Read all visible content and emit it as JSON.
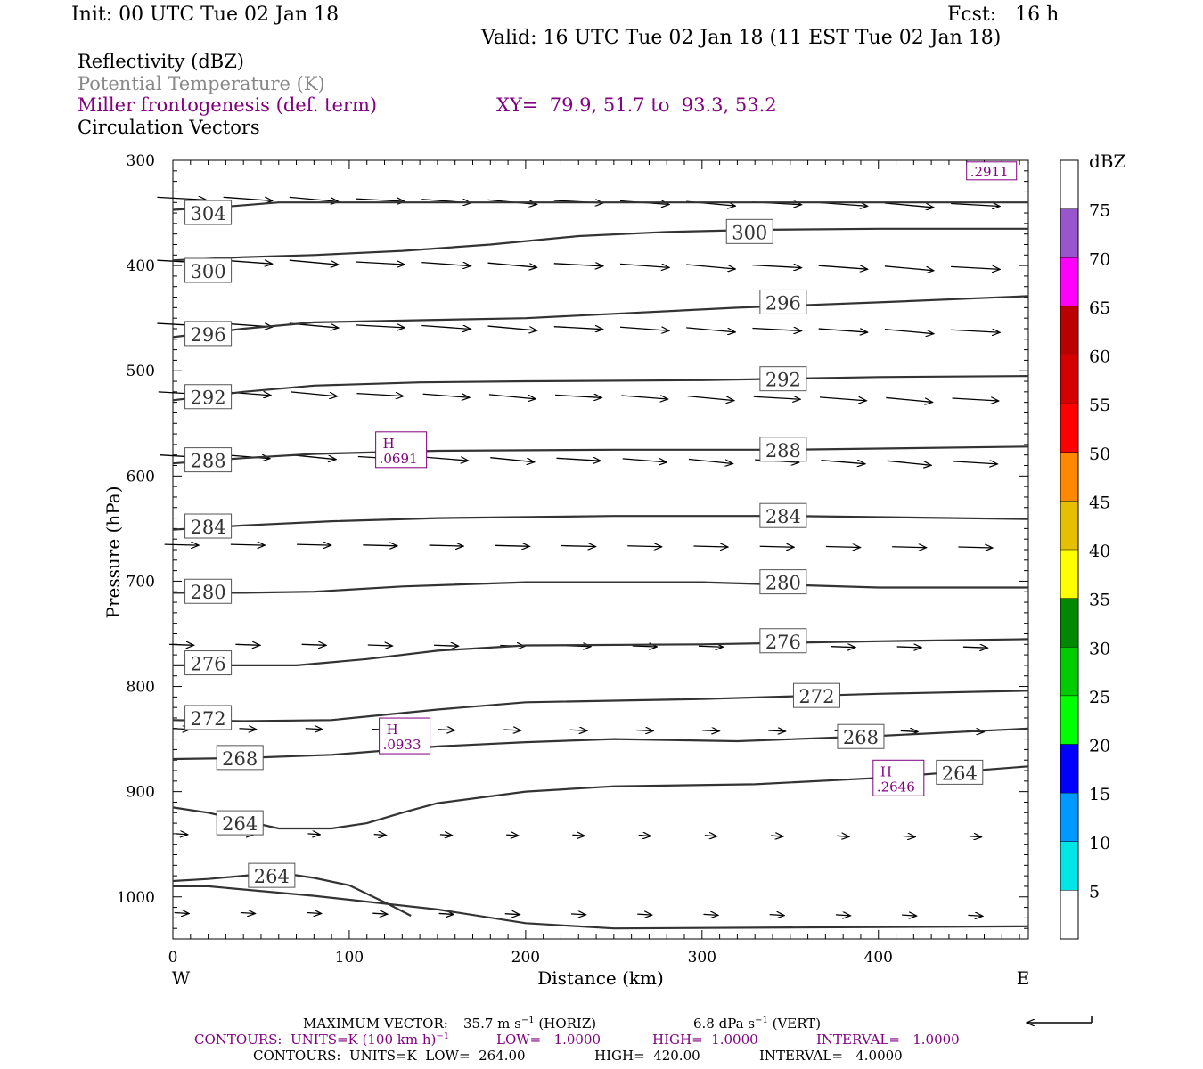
{
  "header": {
    "init": "Init: 00 UTC Tue 02 Jan 18",
    "fcst": "Fcst:   16 h",
    "valid": "Valid: 16 UTC Tue 02 Jan 18 (11 EST Tue 02 Jan 18)"
  },
  "fields": {
    "reflectivity": "Reflectivity (dBZ)",
    "theta": "Potential Temperature (K)",
    "frontogenesis": "Miller frontogenesis (def. term)",
    "xy": "XY=  79.9, 51.7 to  93.3, 53.2",
    "circulation": "Circulation Vectors"
  },
  "colors": {
    "purple": "#800080",
    "theta_line": "#333333",
    "label_box": "#555555"
  },
  "footer": {
    "max_vector_label": "MAXIMUM VECTOR:",
    "max_vector_horiz": "35.7 m s",
    "horiz_tag": "(HORIZ)",
    "max_vector_vert": "6.8 dPa s",
    "vert_tag": "(VERT)",
    "contours_fronto": "CONTOURS:  UNITS=K (100 km h)",
    "fronto_low": "LOW=   1.0000",
    "fronto_high": "HIGH=  1.0000",
    "fronto_interval": "INTERVAL=   1.0000",
    "contours_theta": "CONTOURS:  UNITS=K  LOW=  264.00",
    "theta_high": "HIGH=  420.00",
    "theta_interval": "INTERVAL=   4.0000"
  },
  "chart_data": {
    "type": "line",
    "xlabel": "Distance (km)",
    "ylabel": "Pressure (hPa)",
    "xlim": [
      0,
      485
    ],
    "ylim": [
      1040,
      300
    ],
    "x_ticks": [
      0,
      100,
      200,
      300,
      400
    ],
    "y_ticks": [
      300,
      400,
      500,
      600,
      700,
      800,
      900,
      1000
    ],
    "x_end_labels": {
      "left": "W",
      "right": "E"
    },
    "theta_contours": [
      {
        "label": "304",
        "pts": [
          [
            0,
            347
          ],
          [
            30,
            344
          ],
          [
            60,
            340
          ],
          [
            100,
            340
          ],
          [
            200,
            340
          ],
          [
            300,
            340
          ],
          [
            400,
            340
          ],
          [
            485,
            340
          ]
        ],
        "labels_at": [
          [
            20,
            350
          ]
        ]
      },
      {
        "label": "300",
        "pts": [
          [
            0,
            395
          ],
          [
            40,
            392
          ],
          [
            80,
            390
          ],
          [
            130,
            386
          ],
          [
            180,
            380
          ],
          [
            230,
            372
          ],
          [
            280,
            368
          ],
          [
            330,
            366
          ],
          [
            400,
            365
          ],
          [
            485,
            365
          ]
        ],
        "labels_at": [
          [
            20,
            405
          ],
          [
            327,
            368
          ]
        ]
      },
      {
        "label": "296",
        "pts": [
          [
            0,
            468
          ],
          [
            40,
            460
          ],
          [
            80,
            454
          ],
          [
            140,
            452
          ],
          [
            200,
            450
          ],
          [
            260,
            445
          ],
          [
            320,
            440
          ],
          [
            400,
            435
          ],
          [
            485,
            429
          ]
        ],
        "labels_at": [
          [
            20,
            465
          ],
          [
            346,
            435
          ]
        ]
      },
      {
        "label": "292",
        "pts": [
          [
            0,
            528
          ],
          [
            40,
            520
          ],
          [
            80,
            514
          ],
          [
            140,
            511
          ],
          [
            200,
            510
          ],
          [
            300,
            509
          ],
          [
            400,
            506
          ],
          [
            485,
            505
          ]
        ],
        "labels_at": [
          [
            20,
            525
          ],
          [
            346,
            508
          ]
        ]
      },
      {
        "label": "288",
        "pts": [
          [
            0,
            588
          ],
          [
            40,
            583
          ],
          [
            80,
            579
          ],
          [
            150,
            576
          ],
          [
            250,
            575
          ],
          [
            350,
            575
          ],
          [
            485,
            572
          ]
        ],
        "labels_at": [
          [
            20,
            585
          ],
          [
            346,
            575
          ]
        ]
      },
      {
        "label": "284",
        "pts": [
          [
            0,
            651
          ],
          [
            40,
            647
          ],
          [
            90,
            643
          ],
          [
            150,
            640
          ],
          [
            250,
            638
          ],
          [
            350,
            638
          ],
          [
            485,
            641
          ]
        ],
        "labels_at": [
          [
            20,
            648
          ],
          [
            346,
            638
          ]
        ]
      },
      {
        "label": "280",
        "pts": [
          [
            0,
            711
          ],
          [
            40,
            711
          ],
          [
            80,
            710
          ],
          [
            130,
            705
          ],
          [
            200,
            701
          ],
          [
            300,
            701
          ],
          [
            400,
            706
          ],
          [
            485,
            706
          ]
        ],
        "labels_at": [
          [
            20,
            710
          ],
          [
            346,
            701
          ]
        ]
      },
      {
        "label": "276",
        "pts": [
          [
            0,
            780
          ],
          [
            40,
            780
          ],
          [
            70,
            780
          ],
          [
            110,
            774
          ],
          [
            150,
            766
          ],
          [
            200,
            761
          ],
          [
            300,
            760
          ],
          [
            400,
            757
          ],
          [
            485,
            755
          ]
        ],
        "labels_at": [
          [
            20,
            778
          ],
          [
            346,
            757
          ]
        ]
      },
      {
        "label": "272",
        "pts": [
          [
            0,
            832
          ],
          [
            40,
            833
          ],
          [
            90,
            832
          ],
          [
            150,
            822
          ],
          [
            200,
            815
          ],
          [
            300,
            812
          ],
          [
            400,
            807
          ],
          [
            485,
            804
          ]
        ],
        "labels_at": [
          [
            20,
            830
          ],
          [
            365,
            809
          ]
        ]
      },
      {
        "label": "268",
        "pts": [
          [
            0,
            869
          ],
          [
            40,
            868
          ],
          [
            90,
            865
          ],
          [
            150,
            857
          ],
          [
            200,
            853
          ],
          [
            250,
            850
          ],
          [
            320,
            852
          ],
          [
            400,
            847
          ],
          [
            485,
            840
          ]
        ],
        "labels_at": [
          [
            38,
            868
          ],
          [
            390,
            848
          ]
        ]
      },
      {
        "label": "264",
        "pts": [
          [
            0,
            915
          ],
          [
            20,
            920
          ],
          [
            60,
            935
          ],
          [
            90,
            935
          ],
          [
            110,
            930
          ],
          [
            130,
            920
          ],
          [
            150,
            911
          ],
          [
            200,
            900
          ],
          [
            250,
            895
          ],
          [
            330,
            893
          ],
          [
            400,
            887
          ],
          [
            485,
            876
          ]
        ],
        "labels_at": [
          [
            38,
            930
          ],
          [
            446,
            882
          ]
        ]
      },
      {
        "label": "264",
        "pts": [
          [
            0,
            985
          ],
          [
            20,
            983
          ],
          [
            40,
            980
          ],
          [
            60,
            977
          ],
          [
            80,
            982
          ],
          [
            100,
            989
          ],
          [
            120,
            1005
          ],
          [
            135,
            1018
          ]
        ],
        "labels_at": [
          [
            56,
            980
          ]
        ]
      },
      {
        "label": "",
        "pts": [
          [
            0,
            990
          ],
          [
            20,
            990
          ],
          [
            80,
            999
          ],
          [
            150,
            1012
          ],
          [
            200,
            1025
          ],
          [
            250,
            1030
          ],
          [
            485,
            1028
          ]
        ],
        "labels_at": []
      }
    ],
    "frontogenesis_maxima": [
      {
        "label": "H",
        "value": ".0691",
        "x": 115,
        "p": 575
      },
      {
        "label": "H",
        "value": ".0933",
        "x": 117,
        "p": 847
      },
      {
        "label": "H",
        "value": ".2646",
        "x": 397,
        "p": 887
      },
      {
        "label": "",
        "value": ".2911",
        "x": 450,
        "p": 310
      }
    ],
    "vector_rows": [
      {
        "p": 335,
        "u": 1.0
      },
      {
        "p": 395,
        "u": 1.0
      },
      {
        "p": 455,
        "u": 1.0
      },
      {
        "p": 520,
        "u": 0.95
      },
      {
        "p": 580,
        "u": 0.9
      },
      {
        "p": 665,
        "u": 0.7
      },
      {
        "p": 760,
        "u": 0.5
      },
      {
        "p": 840,
        "u": 0.35
      },
      {
        "p": 940,
        "u": 0.25
      },
      {
        "p": 1015,
        "u": 0.3
      }
    ],
    "colorbar": {
      "label": "dBZ",
      "levels": [
        "5",
        "10",
        "15",
        "20",
        "25",
        "30",
        "35",
        "40",
        "45",
        "50",
        "55",
        "60",
        "65",
        "70",
        "75"
      ],
      "colors": [
        "#ffffff",
        "#00e5e5",
        "#0099ff",
        "#0000ff",
        "#00ff00",
        "#00cc00",
        "#008800",
        "#ffff00",
        "#e5c000",
        "#ff8800",
        "#ff0000",
        "#d40000",
        "#bb0000",
        "#ff00ff",
        "#9955cc",
        "#ffffff"
      ]
    }
  }
}
